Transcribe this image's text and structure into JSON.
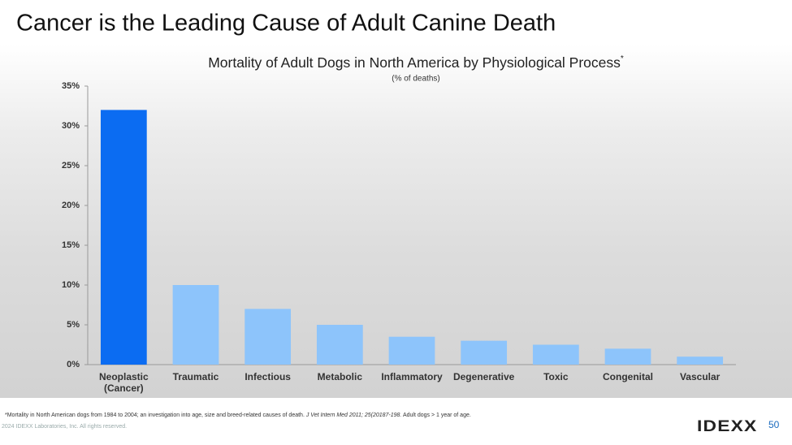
{
  "slide_title": "Cancer is the Leading Cause of Adult Canine Death",
  "chart_data": {
    "type": "bar",
    "title": "Mortality of Adult Dogs in North America by Physiological Process",
    "title_mark": "*",
    "subtitle": "(% of deaths)",
    "categories": [
      "Neoplastic (Cancer)",
      "Traumatic",
      "Infectious",
      "Metabolic",
      "Inflammatory",
      "Degenerative",
      "Toxic",
      "Congenital",
      "Vascular"
    ],
    "values": [
      32,
      10,
      7,
      5,
      3.5,
      3,
      2.5,
      2,
      1
    ],
    "colors": [
      "#0b6cf2",
      "#8dc4fb",
      "#8dc4fb",
      "#8dc4fb",
      "#8dc4fb",
      "#8dc4fb",
      "#8dc4fb",
      "#8dc4fb",
      "#8dc4fb"
    ],
    "ylim": [
      0,
      35
    ],
    "yticks": [
      {
        "value": 0,
        "label": "0%"
      },
      {
        "value": 5,
        "label": "5%"
      },
      {
        "value": 10,
        "label": "10%"
      },
      {
        "value": 15,
        "label": "15%"
      },
      {
        "value": 20,
        "label": "20%"
      },
      {
        "value": 25,
        "label": "25%"
      },
      {
        "value": 30,
        "label": "30%"
      },
      {
        "value": 35,
        "label": "35%"
      }
    ],
    "grid": false
  },
  "footnote": {
    "text": "*Mortality in North American dogs from 1984 to 2004; an investigation into age, size and breed-related causes of death.",
    "journal": "J Vet Intern Med 2011; 25(20187-198.",
    "rest": "Adult dogs > 1 year of age."
  },
  "copyright": "2024 IDEXX Laboratories, Inc. All rights reserved.",
  "logo": "IDEXX",
  "page_number": "50"
}
